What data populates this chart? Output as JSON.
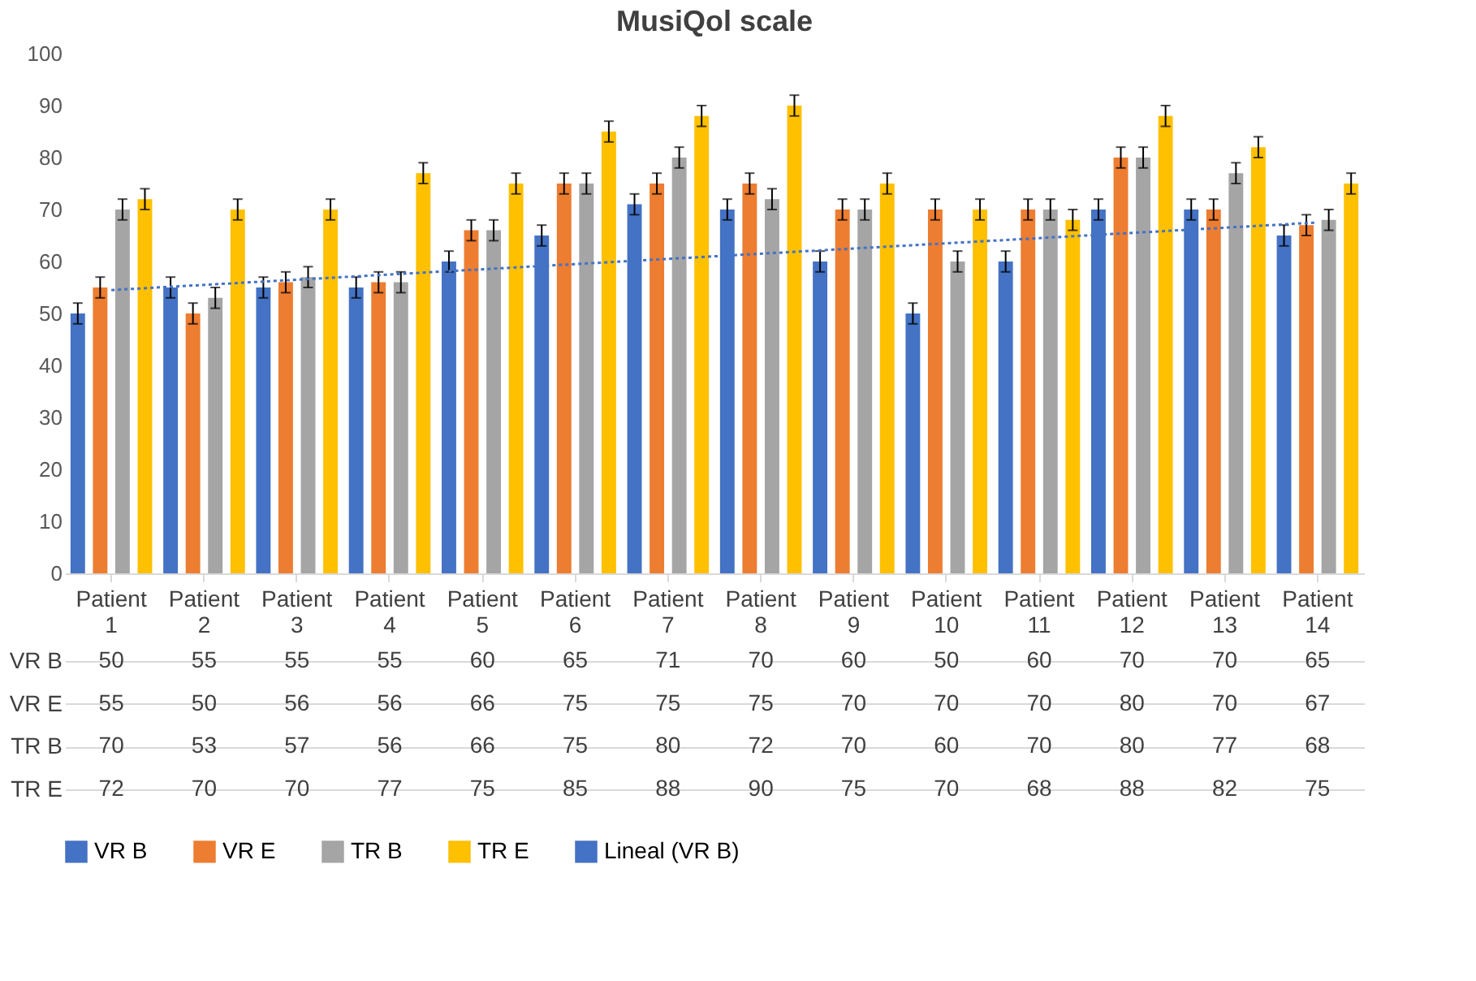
{
  "chart_data": {
    "type": "bar",
    "title": "MusiQol scale",
    "categories": [
      "Patient 1",
      "Patient 2",
      "Patient 3",
      "Patient 4",
      "Patient 5",
      "Patient 6",
      "Patient 7",
      "Patient 8",
      "Patient 9",
      "Patient 10",
      "Patient 11",
      "Patient 12",
      "Patient 13",
      "Patient 14"
    ],
    "series": [
      {
        "name": "VR B",
        "color": "#4472c4",
        "values": [
          50,
          55,
          55,
          55,
          60,
          65,
          71,
          70,
          60,
          50,
          60,
          70,
          70,
          65
        ],
        "errors": [
          2,
          2,
          2,
          2,
          2,
          2,
          2,
          2,
          2,
          2,
          2,
          2,
          2,
          2
        ],
        "value_labels": [
          "50",
          "55",
          "55",
          "55",
          "60",
          "65",
          "71",
          "70",
          "60",
          "50",
          "60",
          "70",
          "70",
          "65"
        ]
      },
      {
        "name": "VR E",
        "color": "#ed7d31",
        "values": [
          55,
          50,
          56,
          56,
          66,
          75,
          75,
          75,
          70,
          70,
          70,
          80,
          70,
          67
        ],
        "errors": [
          2,
          2,
          2,
          2,
          2,
          2,
          2,
          2,
          2,
          2,
          2,
          2,
          2,
          2
        ],
        "value_labels": [
          "55",
          "50",
          "56",
          "56",
          "66",
          "75",
          "75",
          "75",
          "70",
          "70",
          "70",
          "80",
          "70",
          "67"
        ]
      },
      {
        "name": "TR B",
        "color": "#a5a5a5",
        "values": [
          70,
          53,
          57,
          56,
          66,
          75,
          80,
          72,
          70,
          60,
          70,
          80,
          77,
          68
        ],
        "errors": [
          2,
          2,
          2,
          2,
          2,
          2,
          2,
          2,
          2,
          2,
          2,
          2,
          2,
          2
        ],
        "value_labels": [
          "70",
          "53",
          "57",
          "56",
          "66",
          "75",
          "80",
          "72",
          "70",
          "60",
          "70",
          "80",
          "77",
          "68"
        ]
      },
      {
        "name": "TR E",
        "color": "#ffc000",
        "values": [
          72,
          70,
          70,
          77,
          75,
          85,
          88,
          90,
          75,
          70,
          68,
          88,
          82,
          75
        ],
        "errors": [
          2,
          2,
          2,
          2,
          2,
          2,
          2,
          2,
          2,
          2,
          2,
          2,
          2,
          2
        ],
        "value_labels": [
          "72",
          "70",
          "70",
          "77",
          "75",
          "85",
          "88",
          "90",
          "75",
          "70",
          "68",
          "88",
          "82",
          "75"
        ]
      },
      {
        "name": "Lineal (VR B)",
        "type": "line",
        "color": "#4472c4",
        "line_style": "dotted",
        "x": [
          "Patient 1",
          "Patient 14"
        ],
        "values": [
          54.5,
          67.5
        ]
      }
    ],
    "ylim": [
      0,
      100
    ],
    "yticks": [
      0,
      10,
      20,
      30,
      40,
      50,
      60,
      70,
      80,
      90,
      100
    ],
    "grid": false,
    "legend": "bottom"
  }
}
